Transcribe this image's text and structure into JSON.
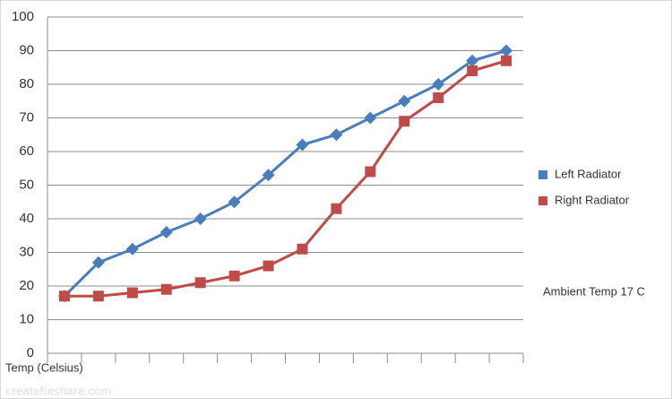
{
  "chart_data": {
    "type": "line",
    "categories": [
      null,
      null,
      null,
      null,
      null,
      null,
      null,
      null,
      null,
      null,
      null,
      null,
      null,
      null
    ],
    "series": [
      {
        "name": "Left Radiator",
        "color": "#4a7ebb",
        "marker": "diamond",
        "values": [
          17,
          27,
          31,
          36,
          40,
          45,
          53,
          62,
          65,
          70,
          75,
          80,
          87,
          90
        ]
      },
      {
        "name": "Right Radiator",
        "color": "#be4b48",
        "marker": "square",
        "values": [
          17,
          17,
          18,
          19,
          21,
          23,
          26,
          31,
          43,
          54,
          69,
          76,
          84,
          87
        ]
      }
    ],
    "ylim": [
      0,
      100
    ],
    "yticks": [
      0,
      10,
      20,
      30,
      40,
      50,
      60,
      70,
      80,
      90,
      100
    ],
    "grid": true,
    "x_label": "Temp (Celsius)",
    "annotation": "Ambient Temp 17 C",
    "legend": "right",
    "watermark": "createfixshare.com"
  }
}
